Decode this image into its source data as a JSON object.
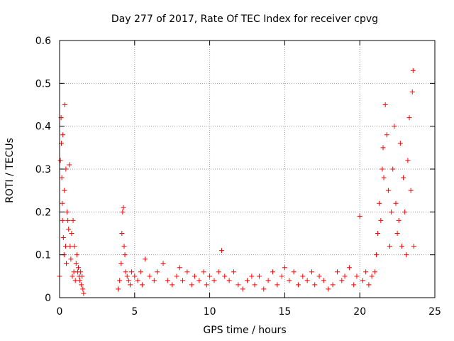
{
  "chart_data": {
    "type": "scatter",
    "title": "Day 277 of 2017, Rate Of TEC Index for receiver cpvg",
    "xlabel": "GPS time / hours",
    "ylabel": "ROTI / TECUs",
    "xlim": [
      0,
      25
    ],
    "ylim": [
      0,
      0.6
    ],
    "xticks": [
      "0",
      "5",
      "10",
      "15",
      "20",
      "25"
    ],
    "yticks": [
      "0",
      "0.1",
      "0.2",
      "0.3",
      "0.4",
      "0.5",
      "0.6"
    ],
    "grid": true,
    "marker": "+",
    "color": "#ff0000",
    "series": [
      {
        "x": [
          0.0,
          0.05,
          0.1,
          0.12,
          0.15,
          0.18,
          0.2,
          0.22,
          0.25,
          0.3,
          0.32,
          0.35,
          0.4,
          0.42,
          0.45,
          0.5,
          0.55,
          0.6,
          0.65,
          0.7,
          0.75,
          0.8,
          0.85,
          0.9,
          0.95,
          1.0,
          1.05,
          1.1,
          1.15,
          1.2,
          1.25,
          1.3,
          1.35,
          1.4,
          1.45,
          1.5,
          1.55,
          1.6,
          3.9,
          4.0,
          4.1,
          4.15,
          4.2,
          4.25,
          4.3,
          4.35,
          4.4,
          4.5,
          4.6,
          4.7,
          4.8,
          5.0,
          5.2,
          5.4,
          5.5,
          5.7,
          6.0,
          6.3,
          6.5,
          6.9,
          7.2,
          7.5,
          7.8,
          8.0,
          8.2,
          8.5,
          8.8,
          9.0,
          9.3,
          9.6,
          9.8,
          10.0,
          10.3,
          10.6,
          10.8,
          11.0,
          11.3,
          11.6,
          11.9,
          12.2,
          12.5,
          12.8,
          13.0,
          13.3,
          13.6,
          13.9,
          14.2,
          14.5,
          14.8,
          15.0,
          15.3,
          15.6,
          15.9,
          16.2,
          16.5,
          16.8,
          17.0,
          17.3,
          17.6,
          17.9,
          18.2,
          18.5,
          18.8,
          19.0,
          19.3,
          19.6,
          19.8,
          20.0,
          20.2,
          20.4,
          20.6,
          20.8,
          21.0,
          21.1,
          21.2,
          21.3,
          21.4,
          21.5,
          21.55,
          21.6,
          21.7,
          21.8,
          21.9,
          22.0,
          22.1,
          22.2,
          22.3,
          22.4,
          22.5,
          22.6,
          22.7,
          22.8,
          22.9,
          23.0,
          23.1,
          23.2,
          23.3,
          23.4,
          23.5,
          23.55,
          23.6
        ],
        "y": [
          0.05,
          0.32,
          0.42,
          0.36,
          0.28,
          0.22,
          0.18,
          0.38,
          0.14,
          0.1,
          0.25,
          0.45,
          0.12,
          0.3,
          0.08,
          0.2,
          0.18,
          0.16,
          0.31,
          0.12,
          0.09,
          0.15,
          0.05,
          0.18,
          0.06,
          0.12,
          0.04,
          0.08,
          0.1,
          0.06,
          0.07,
          0.05,
          0.04,
          0.06,
          0.03,
          0.05,
          0.02,
          0.01,
          0.02,
          0.04,
          0.08,
          0.15,
          0.2,
          0.21,
          0.12,
          0.1,
          0.06,
          0.05,
          0.04,
          0.03,
          0.06,
          0.05,
          0.04,
          0.06,
          0.03,
          0.09,
          0.05,
          0.04,
          0.06,
          0.08,
          0.04,
          0.03,
          0.05,
          0.07,
          0.04,
          0.06,
          0.03,
          0.05,
          0.04,
          0.06,
          0.03,
          0.05,
          0.04,
          0.06,
          0.11,
          0.05,
          0.04,
          0.06,
          0.03,
          0.02,
          0.04,
          0.05,
          0.03,
          0.05,
          0.02,
          0.04,
          0.06,
          0.03,
          0.05,
          0.07,
          0.04,
          0.06,
          0.03,
          0.05,
          0.04,
          0.06,
          0.03,
          0.05,
          0.04,
          0.02,
          0.03,
          0.06,
          0.04,
          0.05,
          0.07,
          0.03,
          0.05,
          0.19,
          0.04,
          0.06,
          0.03,
          0.05,
          0.06,
          0.1,
          0.15,
          0.22,
          0.18,
          0.3,
          0.35,
          0.28,
          0.45,
          0.38,
          0.25,
          0.12,
          0.2,
          0.3,
          0.4,
          0.22,
          0.15,
          0.18,
          0.36,
          0.12,
          0.28,
          0.2,
          0.1,
          0.32,
          0.42,
          0.25,
          0.48,
          0.53,
          0.12
        ]
      }
    ]
  }
}
